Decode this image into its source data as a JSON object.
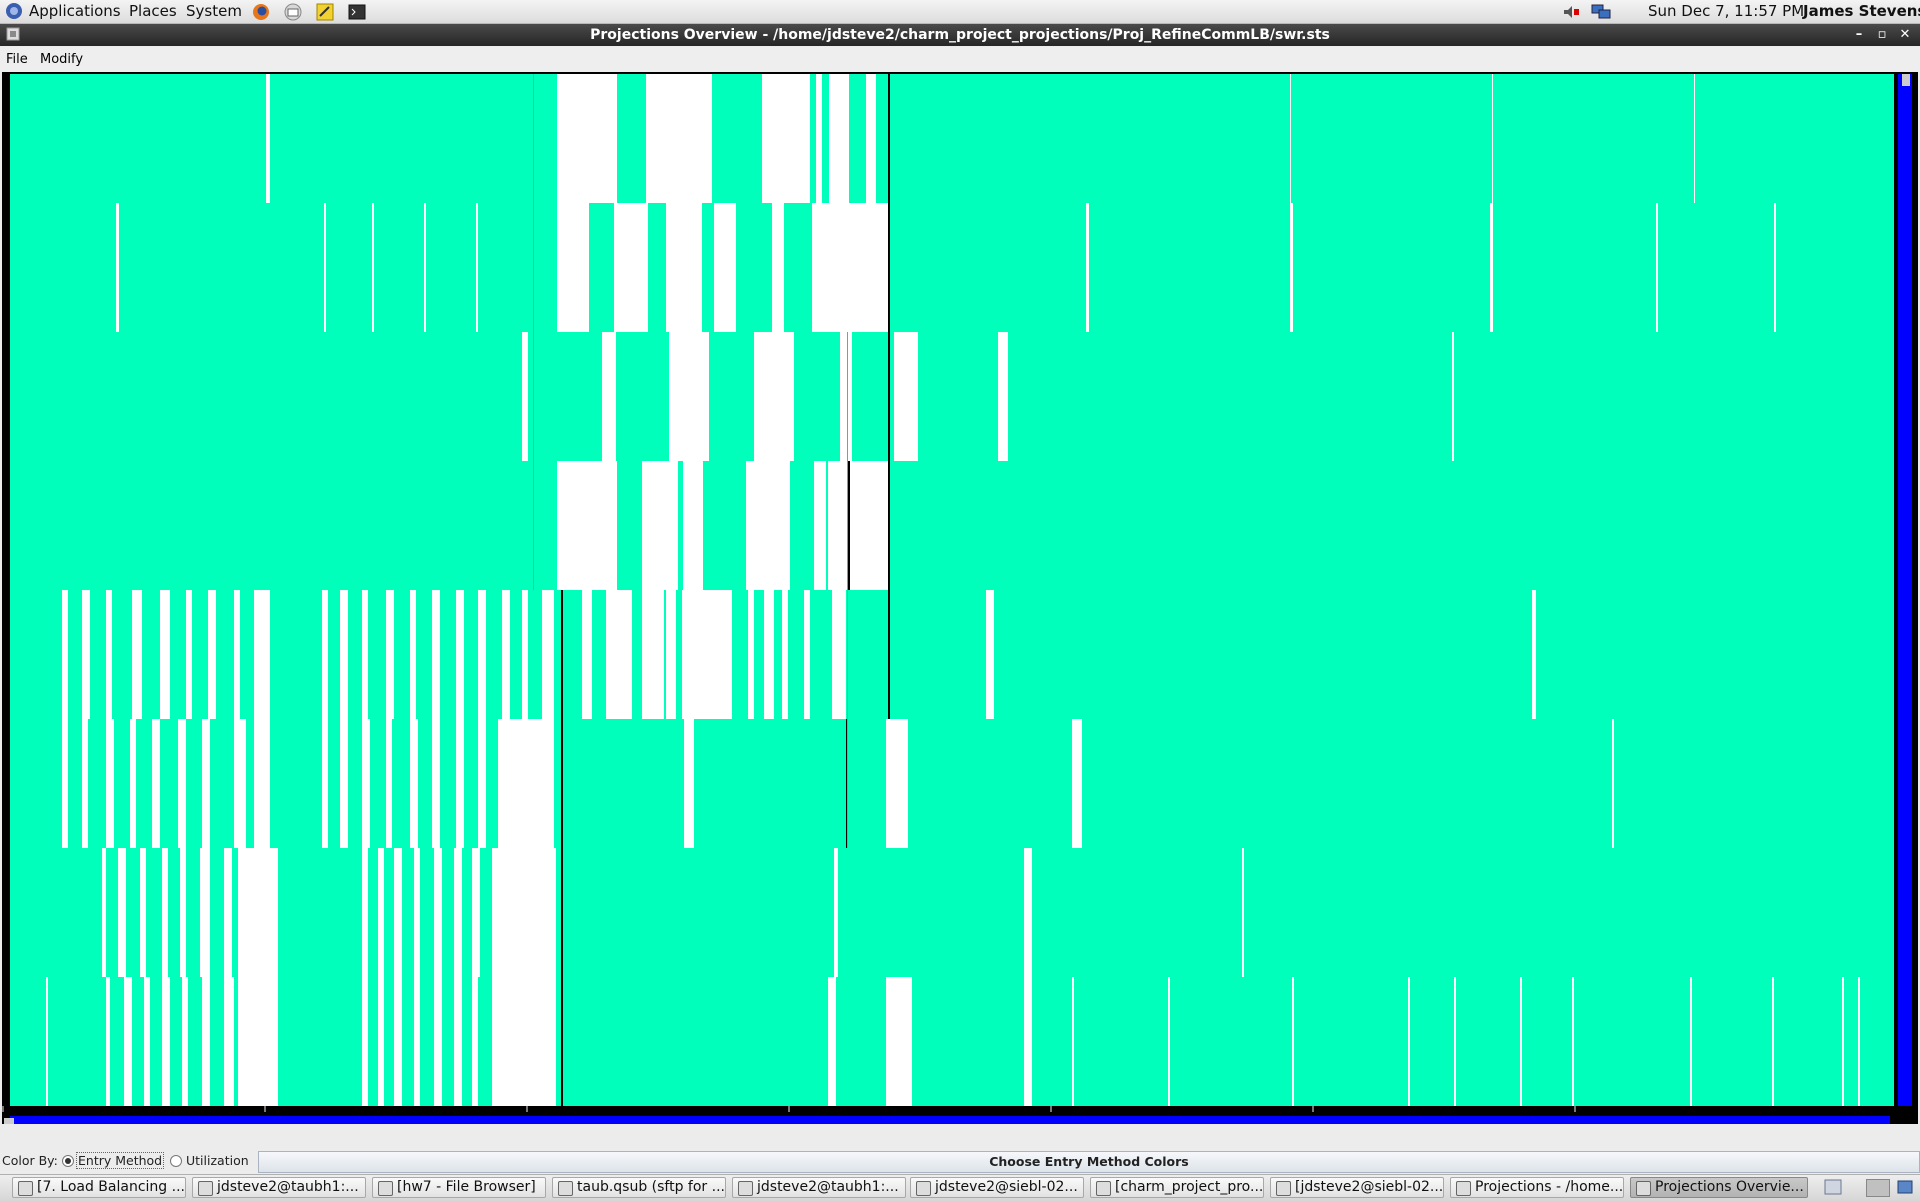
{
  "top_panel": {
    "menus": [
      "Applications",
      "Places",
      "System"
    ],
    "clock": "Sun Dec  7, 11:57 PM",
    "user": "James Stevens"
  },
  "window": {
    "title": "Projections Overview - /home/jdsteve2/charm_project_projections/Proj_RefineCommLB/swr.sts"
  },
  "menubar": {
    "items": [
      "File",
      "Modify"
    ]
  },
  "overview": {
    "colors": {
      "busy": "#00ffbb",
      "idle": "#ffffff",
      "background": "#000000",
      "scroll": "#0000ff"
    },
    "row_count": 8
  },
  "controls": {
    "color_by_label": "Color By:",
    "options": [
      "Entry Method",
      "Utilization"
    ],
    "selected": "Entry Method",
    "choose_colors_button": "Choose Entry Method Colors"
  },
  "taskbar": {
    "items": [
      "[7. Load Balancing ...",
      "jdsteve2@taubh1:...",
      "[hw7 - File Browser]",
      "taub.qsub (sftp for ...",
      "jdsteve2@taubh1:...",
      "jdsteve2@siebl-02...",
      "[charm_project_pro...",
      "[jdsteve2@siebl-02...",
      "Projections - /home...",
      "Projections Overvie..."
    ],
    "active": 9
  }
}
